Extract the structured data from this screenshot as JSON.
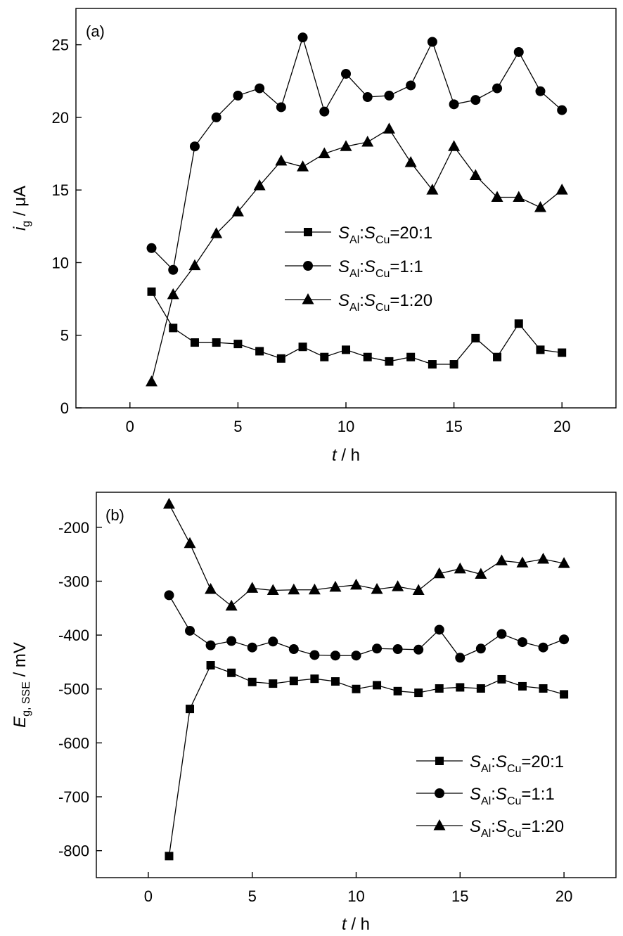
{
  "chart_data": [
    {
      "type": "line",
      "panel_label": "(a)",
      "xlabel": {
        "var": "t",
        "rest": " / h"
      },
      "ylabel": {
        "var": "i",
        "sub": "g",
        "rest": " / μA"
      },
      "xlim": [
        -2.5,
        22.5
      ],
      "ylim": [
        0,
        27.5
      ],
      "xticks": [
        0,
        5,
        10,
        15,
        20
      ],
      "yticks": [
        0,
        5,
        10,
        15,
        20,
        25
      ],
      "legend_position": "center",
      "series": [
        {
          "marker": "square",
          "legend": {
            "s1": "S",
            "sub1": "Al",
            "sep": ":",
            "s2": "S",
            "sub2": "Cu",
            "ratio": "=20:1"
          },
          "x": [
            1,
            2,
            3,
            4,
            5,
            6,
            7,
            8,
            9,
            10,
            11,
            12,
            13,
            14,
            15,
            16,
            17,
            18,
            19,
            20
          ],
          "y": [
            8.0,
            5.5,
            4.5,
            4.5,
            4.4,
            3.9,
            3.4,
            4.2,
            3.5,
            4.0,
            3.5,
            3.2,
            3.5,
            3.0,
            3.0,
            4.8,
            3.5,
            5.8,
            4.0,
            3.8
          ]
        },
        {
          "marker": "circle",
          "legend": {
            "s1": "S",
            "sub1": "Al",
            "sep": ":",
            "s2": "S",
            "sub2": "Cu",
            "ratio": "=1:1"
          },
          "x": [
            1,
            2,
            3,
            4,
            5,
            6,
            7,
            8,
            9,
            10,
            11,
            12,
            13,
            14,
            15,
            16,
            17,
            18,
            19,
            20
          ],
          "y": [
            11.0,
            9.5,
            18.0,
            20.0,
            21.5,
            22.0,
            20.7,
            25.5,
            20.4,
            23.0,
            21.4,
            21.5,
            22.2,
            25.2,
            20.9,
            21.2,
            22.0,
            24.5,
            21.8,
            20.5
          ]
        },
        {
          "marker": "triangle",
          "legend": {
            "s1": "S",
            "sub1": "Al",
            "sep": ":",
            "s2": "S",
            "sub2": "Cu",
            "ratio": "=1:20"
          },
          "x": [
            1,
            2,
            3,
            4,
            5,
            6,
            7,
            8,
            9,
            10,
            11,
            12,
            13,
            14,
            15,
            16,
            17,
            18,
            19,
            20
          ],
          "y": [
            1.8,
            7.8,
            9.8,
            12.0,
            13.5,
            15.3,
            17.0,
            16.6,
            17.5,
            18.0,
            18.3,
            19.2,
            16.9,
            15.0,
            18.0,
            16.0,
            14.5,
            14.5,
            13.8,
            15.0
          ]
        }
      ]
    },
    {
      "type": "line",
      "panel_label": "(b)",
      "xlabel": {
        "var": "t",
        "rest": " / h"
      },
      "ylabel": {
        "var": "E",
        "sub": "g, SSE",
        "rest": " / mV"
      },
      "xlim": [
        -2.5,
        22.5
      ],
      "ylim": [
        -850,
        -135
      ],
      "xticks": [
        0,
        5,
        10,
        15,
        20
      ],
      "yticks": [
        -800,
        -700,
        -600,
        -500,
        -400,
        -300,
        -200
      ],
      "legend_position": "bottom-right",
      "series": [
        {
          "marker": "square",
          "legend": {
            "s1": "S",
            "sub1": "Al",
            "sep": ":",
            "s2": "S",
            "sub2": "Cu",
            "ratio": "=20:1"
          },
          "x": [
            1,
            2,
            3,
            4,
            5,
            6,
            7,
            8,
            9,
            10,
            11,
            12,
            13,
            14,
            15,
            16,
            17,
            18,
            19,
            20
          ],
          "y": [
            -810,
            -537,
            -456,
            -470,
            -487,
            -490,
            -485,
            -481,
            -486,
            -500,
            -493,
            -504,
            -507,
            -499,
            -497,
            -499,
            -482,
            -495,
            -499,
            -510
          ]
        },
        {
          "marker": "circle",
          "legend": {
            "s1": "S",
            "sub1": "Al",
            "sep": ":",
            "s2": "S",
            "sub2": "Cu",
            "ratio": "=1:1"
          },
          "x": [
            1,
            2,
            3,
            4,
            5,
            6,
            7,
            8,
            9,
            10,
            11,
            12,
            13,
            14,
            15,
            16,
            17,
            18,
            19,
            20
          ],
          "y": [
            -326,
            -392,
            -419,
            -411,
            -423,
            -412,
            -426,
            -437,
            -438,
            -438,
            -425,
            -426,
            -427,
            -390,
            -442,
            -425,
            -398,
            -413,
            -423,
            -408
          ]
        },
        {
          "marker": "triangle",
          "legend": {
            "s1": "S",
            "sub1": "Al",
            "sep": ":",
            "s2": "S",
            "sub2": "Cu",
            "ratio": "=1:20"
          },
          "x": [
            1,
            2,
            3,
            4,
            5,
            6,
            7,
            8,
            9,
            10,
            11,
            12,
            13,
            14,
            15,
            16,
            17,
            18,
            19,
            20
          ],
          "y": [
            -157,
            -230,
            -315,
            -346,
            -313,
            -317,
            -316,
            -316,
            -311,
            -307,
            -315,
            -310,
            -317,
            -286,
            -277,
            -287,
            -262,
            -266,
            -259,
            -267
          ]
        }
      ]
    }
  ]
}
